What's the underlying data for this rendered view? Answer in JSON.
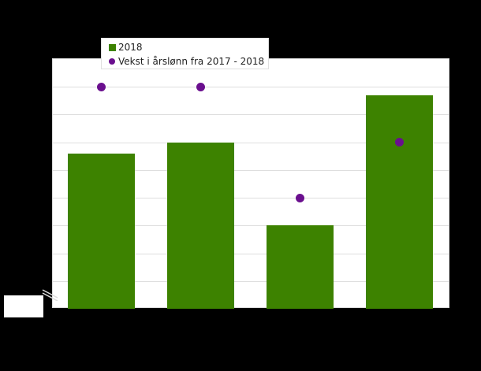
{
  "chart_data": {
    "type": "bar",
    "title": "",
    "xlabel": "",
    "ylabel": "",
    "categories": [
      "",
      "",
      "",
      ""
    ],
    "series": [
      {
        "name": "2018",
        "kind": "bar",
        "color": "#3d8200",
        "values": [
          5.6,
          6.0,
          3.0,
          7.7
        ]
      },
      {
        "name": "Vekst i årslønn fra 2017 - 2018",
        "kind": "scatter",
        "color": "#6a0f8e",
        "values": [
          8.0,
          8.0,
          4.0,
          6.0
        ]
      }
    ],
    "ylim": [
      0,
      9
    ],
    "grid": true,
    "gridline_step": 1,
    "legend_position": "top-left",
    "axis_break": true
  },
  "legend": {
    "items": [
      {
        "label": "2018",
        "marker": "square",
        "color": "#3d8200"
      },
      {
        "label": "Vekst i årslønn fra 2017 - 2018",
        "marker": "circle",
        "color": "#6a0f8e"
      }
    ]
  },
  "colors": {
    "background": "#000000",
    "plot_background": "#ffffff",
    "bar": "#3d8200",
    "dot": "#6a0f8e",
    "grid": "#dedede"
  }
}
